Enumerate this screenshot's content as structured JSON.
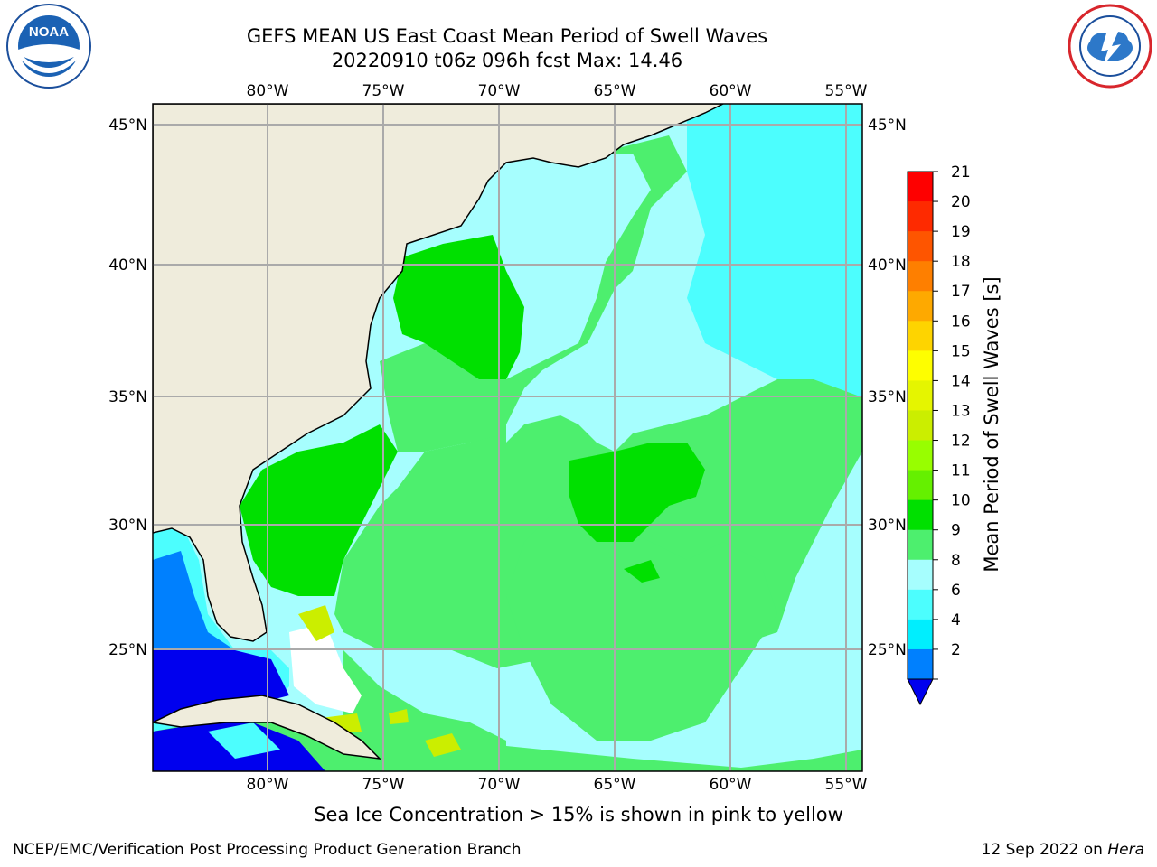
{
  "title": {
    "line1": "GEFS MEAN US East Coast Mean Period of Swell Waves",
    "line2": "20220910 t06z 096h fcst   Max: 14.46"
  },
  "map": {
    "region": "US East Coast / Western North Atlantic",
    "lon_ticks": [
      "80°W",
      "75°W",
      "70°W",
      "65°W",
      "60°W",
      "55°W"
    ],
    "lat_ticks": [
      "45°N",
      "40°N",
      "35°N",
      "30°N",
      "25°N"
    ],
    "colors": {
      "land": "#efecdc",
      "coast": "#000000",
      "grid": "#aaaaaa"
    }
  },
  "colorbar": {
    "label": "Mean Period of Swell Waves [s]",
    "ticks": [
      "21",
      "20",
      "19",
      "18",
      "17",
      "16",
      "15",
      "14",
      "13",
      "12",
      "11",
      "10",
      "9",
      "8",
      "6",
      "4",
      "2"
    ],
    "colors": [
      "#fe0000",
      "#fe2a00",
      "#fe5500",
      "#fe7f00",
      "#fea900",
      "#fed400",
      "#fefe00",
      "#e5f500",
      "#cbee00",
      "#98fe00",
      "#65f000",
      "#00e000",
      "#4def6e",
      "#a6fefe",
      "#4cfefe",
      "#00eefe",
      "#0080fe"
    ],
    "under_color": "#0000ee"
  },
  "note": "Sea Ice Concentration > 15% is shown in pink to yellow",
  "footer": {
    "left": "NCEP/EMC/Verification Post Processing Product Generation Branch",
    "right_date": "12 Sep 2022 on ",
    "right_machine": "Hera"
  },
  "logos": {
    "left": "noaa-logo",
    "right": "nws-logo",
    "left_text": "NOAA"
  }
}
